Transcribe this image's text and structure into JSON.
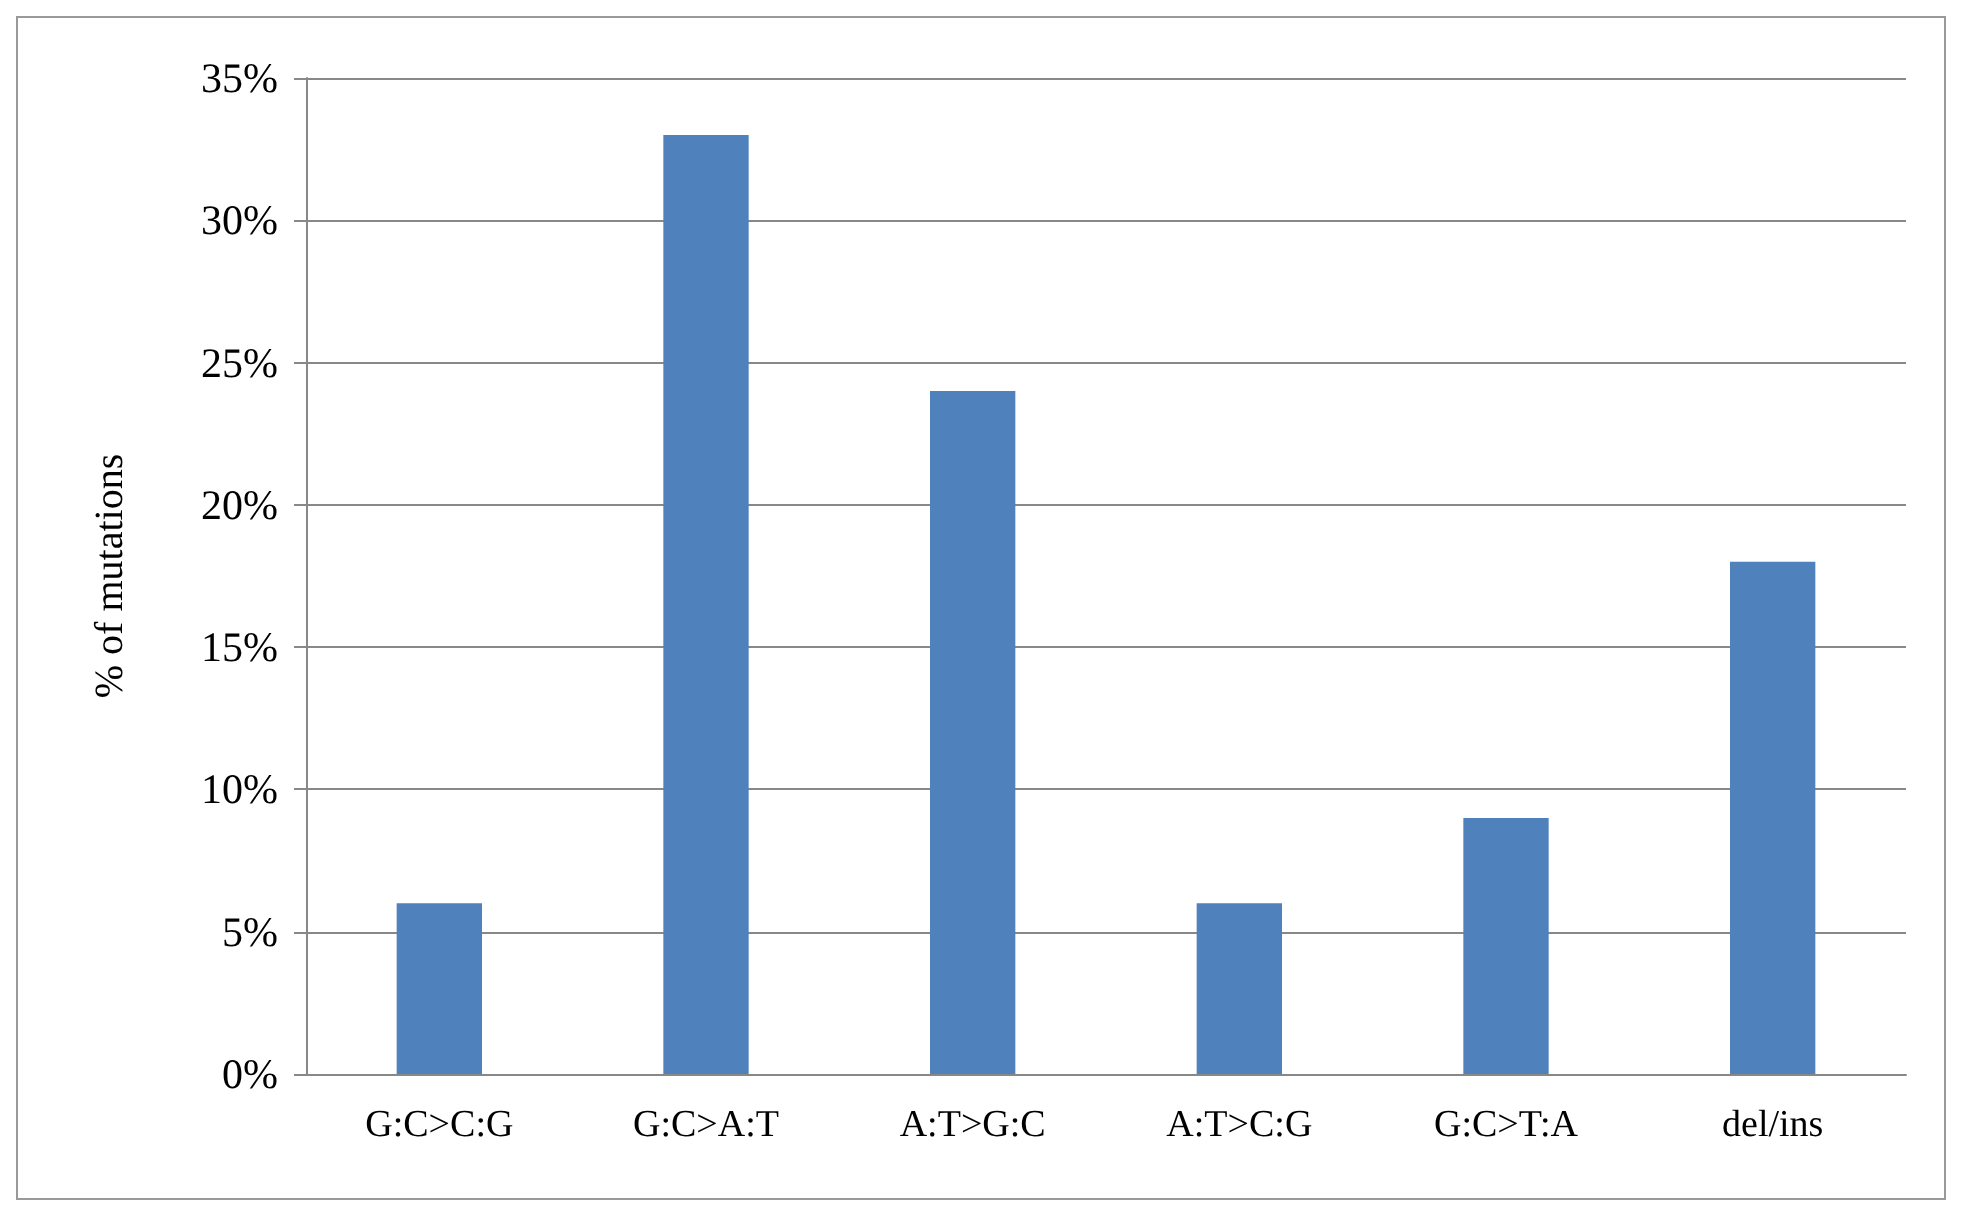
{
  "chart_data": {
    "type": "bar",
    "ylabel": "% of mutations",
    "categories": [
      "G:C>C:G",
      "G:C>A:T",
      "A:T>G:C",
      "A:T>C:G",
      "G:C>T:A",
      "del/ins"
    ],
    "values": [
      6,
      33,
      24,
      6,
      9,
      18
    ],
    "color": "#4f81bd",
    "ylim": [
      0,
      35
    ],
    "yticks": [
      {
        "value": 0,
        "label": "0%"
      },
      {
        "value": 5,
        "label": "5%"
      },
      {
        "value": 10,
        "label": "10%"
      },
      {
        "value": 15,
        "label": "15%"
      },
      {
        "value": 20,
        "label": "20%"
      },
      {
        "value": 25,
        "label": "25%"
      },
      {
        "value": 30,
        "label": "30%"
      },
      {
        "value": 35,
        "label": "35%"
      }
    ],
    "grid": "y"
  }
}
